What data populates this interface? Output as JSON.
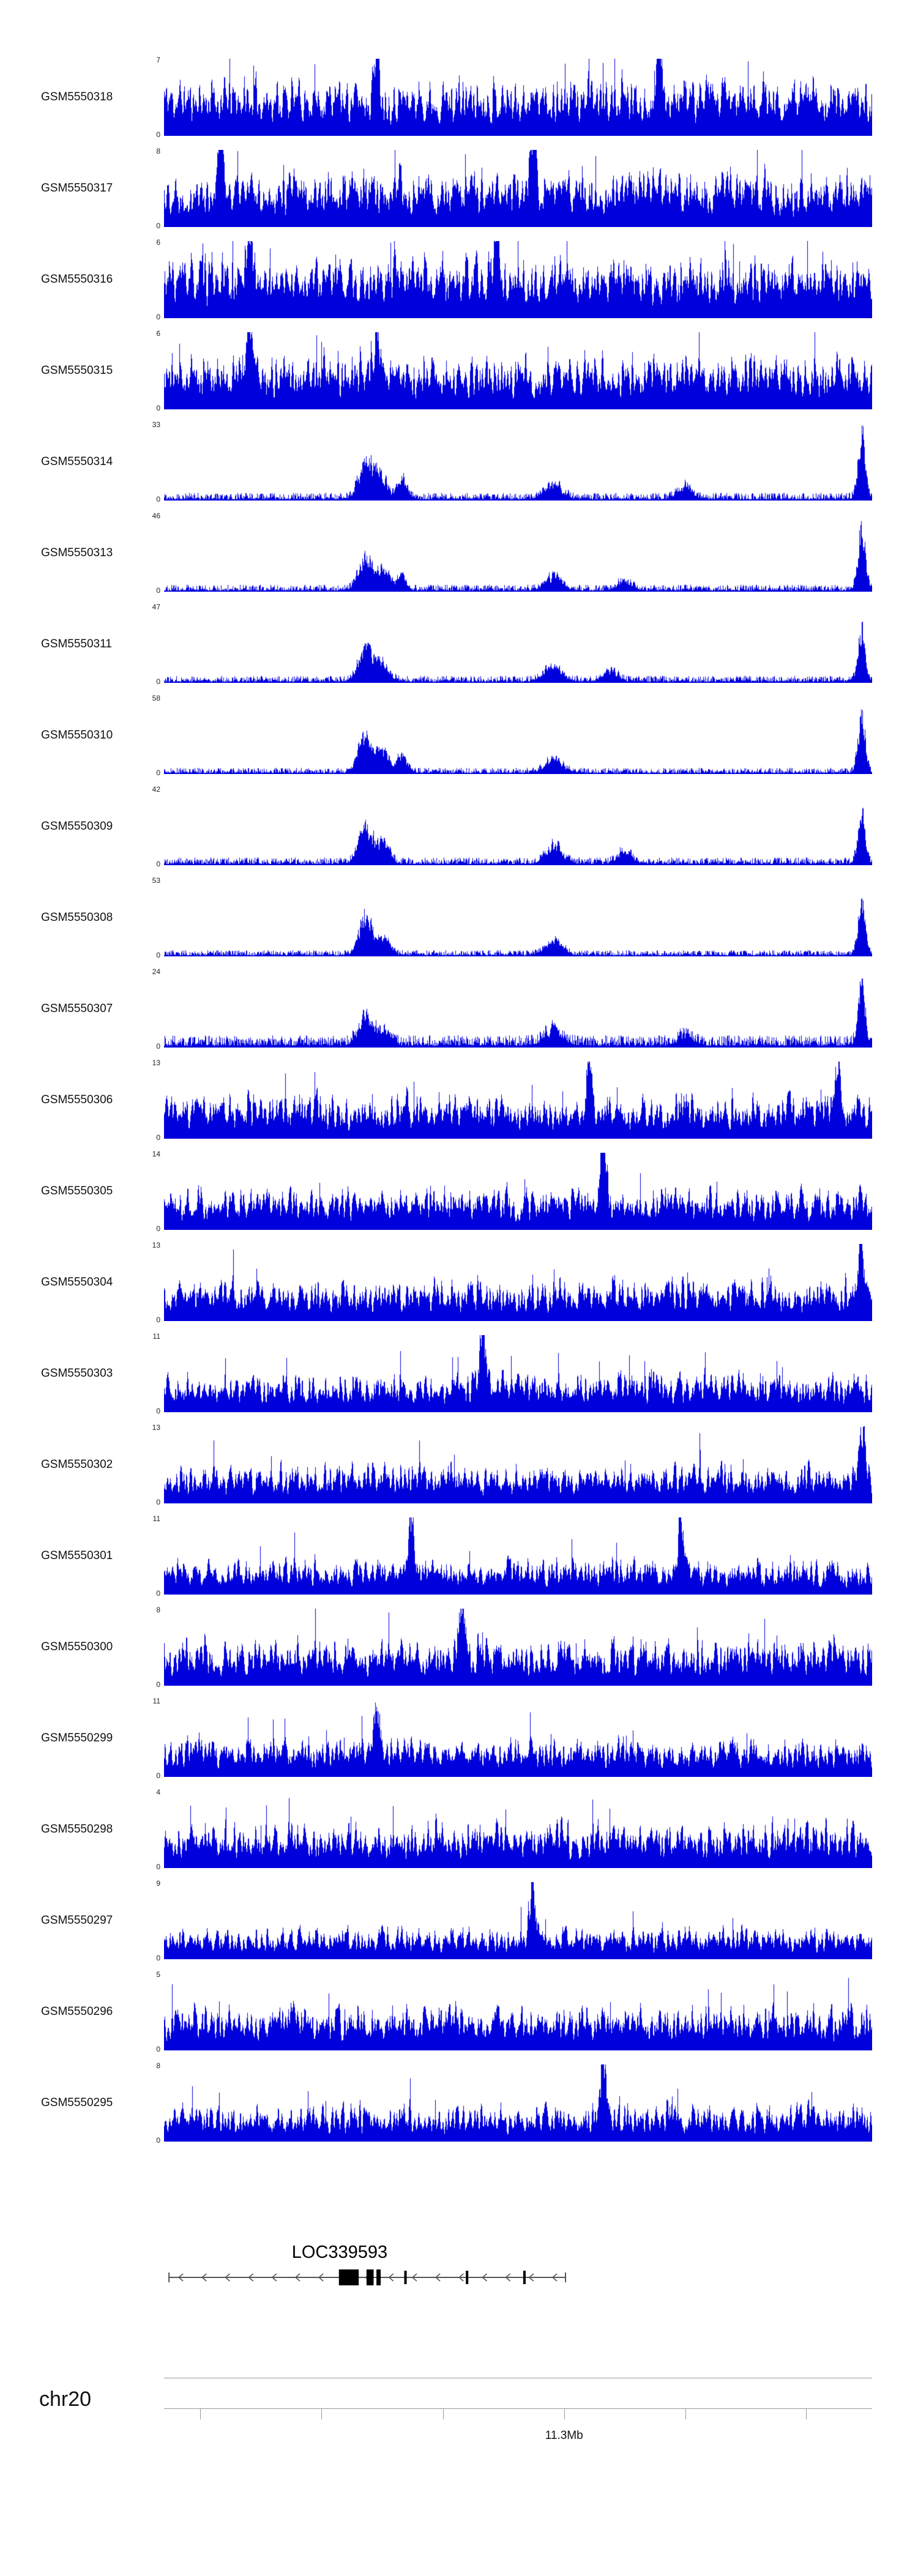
{
  "page": {
    "background": "#ffffff",
    "signal_color": "#0000dd",
    "gene_color": "#000000",
    "axis_color": "#999999"
  },
  "figure": {
    "zero_label": "0"
  },
  "chart_data": {
    "type": "area",
    "title": "",
    "description": "Genome browser coverage tracks for 23 GEO samples over a region of chr20 around 11.3Mb, with gene model LOC339593 below",
    "legend": "none",
    "grid": false,
    "x_tick_labels": [
      "11.3Mb"
    ],
    "tracks": [
      {
        "id": "GSM5550318",
        "ymin": 0,
        "ymax": 7,
        "profile": {
          "kind": "noise",
          "base": 0.92,
          "seed": 11,
          "spikes": [
            [
              0.3,
              0.95
            ],
            [
              0.7,
              0.9
            ]
          ]
        }
      },
      {
        "id": "GSM5550317",
        "ymin": 0,
        "ymax": 8,
        "profile": {
          "kind": "noise",
          "base": 0.88,
          "seed": 22,
          "spikes": [
            [
              0.08,
              0.95
            ],
            [
              0.52,
              0.9
            ]
          ]
        }
      },
      {
        "id": "GSM5550316",
        "ymin": 0,
        "ymax": 6,
        "profile": {
          "kind": "noise",
          "base": 0.95,
          "seed": 33,
          "spikes": [
            [
              0.12,
              1.0
            ],
            [
              0.47,
              0.95
            ]
          ]
        }
      },
      {
        "id": "GSM5550315",
        "ymin": 0,
        "ymax": 6,
        "profile": {
          "kind": "noise",
          "base": 0.85,
          "seed": 44,
          "spikes": [
            [
              0.12,
              1.0
            ],
            [
              0.3,
              0.9
            ]
          ]
        }
      },
      {
        "id": "GSM5550314",
        "ymin": 0,
        "ymax": 33,
        "profile": {
          "kind": "peaks",
          "base": 0.1,
          "seed": 55,
          "peaks": [
            [
              0.285,
              0.55,
              0.01
            ],
            [
              0.305,
              0.38,
              0.008
            ],
            [
              0.335,
              0.3,
              0.007
            ],
            [
              0.55,
              0.22,
              0.012
            ],
            [
              0.735,
              0.18,
              0.01
            ],
            [
              0.985,
              1.0,
              0.005
            ]
          ]
        }
      },
      {
        "id": "GSM5550313",
        "ymin": 0,
        "ymax": 46,
        "profile": {
          "kind": "peaks",
          "base": 0.09,
          "seed": 66,
          "peaks": [
            [
              0.285,
              0.52,
              0.01
            ],
            [
              0.31,
              0.3,
              0.008
            ],
            [
              0.335,
              0.22,
              0.007
            ],
            [
              0.55,
              0.2,
              0.012
            ],
            [
              0.65,
              0.14,
              0.01
            ],
            [
              0.985,
              0.97,
              0.005
            ]
          ]
        }
      },
      {
        "id": "GSM5550311",
        "ymin": 0,
        "ymax": 47,
        "profile": {
          "kind": "peaks",
          "base": 0.09,
          "seed": 77,
          "peaks": [
            [
              0.285,
              0.5,
              0.01
            ],
            [
              0.31,
              0.28,
              0.008
            ],
            [
              0.55,
              0.22,
              0.012
            ],
            [
              0.63,
              0.16,
              0.01
            ],
            [
              0.985,
              0.8,
              0.005
            ]
          ]
        }
      },
      {
        "id": "GSM5550310",
        "ymin": 0,
        "ymax": 58,
        "profile": {
          "kind": "peaks",
          "base": 0.08,
          "seed": 88,
          "peaks": [
            [
              0.285,
              0.6,
              0.01
            ],
            [
              0.31,
              0.33,
              0.008
            ],
            [
              0.335,
              0.25,
              0.007
            ],
            [
              0.55,
              0.2,
              0.012
            ],
            [
              0.985,
              0.9,
              0.005
            ]
          ]
        }
      },
      {
        "id": "GSM5550309",
        "ymin": 0,
        "ymax": 42,
        "profile": {
          "kind": "peaks",
          "base": 0.1,
          "seed": 99,
          "peaks": [
            [
              0.285,
              0.55,
              0.01
            ],
            [
              0.31,
              0.3,
              0.008
            ],
            [
              0.55,
              0.25,
              0.012
            ],
            [
              0.65,
              0.18,
              0.01
            ],
            [
              0.985,
              0.85,
              0.005
            ]
          ]
        }
      },
      {
        "id": "GSM5550308",
        "ymin": 0,
        "ymax": 53,
        "profile": {
          "kind": "peaks",
          "base": 0.08,
          "seed": 110,
          "peaks": [
            [
              0.285,
              0.65,
              0.009
            ],
            [
              0.31,
              0.28,
              0.008
            ],
            [
              0.55,
              0.2,
              0.012
            ],
            [
              0.985,
              0.8,
              0.005
            ]
          ]
        }
      },
      {
        "id": "GSM5550307",
        "ymin": 0,
        "ymax": 24,
        "profile": {
          "kind": "peaks",
          "base": 0.16,
          "seed": 121,
          "peaks": [
            [
              0.285,
              0.4,
              0.01
            ],
            [
              0.31,
              0.25,
              0.008
            ],
            [
              0.55,
              0.22,
              0.012
            ],
            [
              0.735,
              0.15,
              0.01
            ],
            [
              0.985,
              0.92,
              0.005
            ]
          ]
        }
      },
      {
        "id": "GSM5550306",
        "ymin": 0,
        "ymax": 13,
        "profile": {
          "kind": "noise",
          "base": 0.7,
          "seed": 132,
          "spikes": [
            [
              0.6,
              1.0
            ],
            [
              0.95,
              0.9
            ]
          ]
        }
      },
      {
        "id": "GSM5550305",
        "ymin": 0,
        "ymax": 14,
        "profile": {
          "kind": "noise",
          "base": 0.66,
          "seed": 143,
          "spikes": [
            [
              0.62,
              1.0
            ]
          ]
        }
      },
      {
        "id": "GSM5550304",
        "ymin": 0,
        "ymax": 13,
        "profile": {
          "kind": "noise",
          "base": 0.66,
          "seed": 154,
          "spikes": [
            [
              0.985,
              0.95
            ]
          ]
        }
      },
      {
        "id": "GSM5550303",
        "ymin": 0,
        "ymax": 11,
        "profile": {
          "kind": "noise",
          "base": 0.62,
          "seed": 165,
          "spikes": [
            [
              0.45,
              1.0
            ]
          ]
        }
      },
      {
        "id": "GSM5550302",
        "ymin": 0,
        "ymax": 13,
        "profile": {
          "kind": "noise",
          "base": 0.6,
          "seed": 176,
          "spikes": [
            [
              0.985,
              1.0
            ]
          ]
        }
      },
      {
        "id": "GSM5550301",
        "ymin": 0,
        "ymax": 11,
        "profile": {
          "kind": "noise",
          "base": 0.55,
          "seed": 187,
          "spikes": [
            [
              0.35,
              1.0
            ],
            [
              0.73,
              0.95
            ]
          ]
        }
      },
      {
        "id": "GSM5550300",
        "ymin": 0,
        "ymax": 8,
        "profile": {
          "kind": "noise",
          "base": 0.72,
          "seed": 198,
          "spikes": [
            [
              0.42,
              1.0
            ]
          ]
        }
      },
      {
        "id": "GSM5550299",
        "ymin": 0,
        "ymax": 11,
        "profile": {
          "kind": "noise",
          "base": 0.6,
          "seed": 209,
          "spikes": [
            [
              0.3,
              0.95
            ]
          ]
        }
      },
      {
        "id": "GSM5550298",
        "ymin": 0,
        "ymax": 4,
        "profile": {
          "kind": "noise",
          "base": 0.72,
          "seed": 220,
          "spikes": []
        }
      },
      {
        "id": "GSM5550297",
        "ymin": 0,
        "ymax": 9,
        "profile": {
          "kind": "noise",
          "base": 0.5,
          "seed": 231,
          "spikes": [
            [
              0.52,
              1.0
            ]
          ]
        }
      },
      {
        "id": "GSM5550296",
        "ymin": 0,
        "ymax": 5,
        "profile": {
          "kind": "noise",
          "base": 0.7,
          "seed": 242,
          "spikes": []
        }
      },
      {
        "id": "GSM5550295",
        "ymin": 0,
        "ymax": 8,
        "profile": {
          "kind": "noise",
          "base": 0.58,
          "seed": 253,
          "spikes": [
            [
              0.62,
              1.0
            ]
          ]
        }
      }
    ],
    "gene_track": {
      "label": "LOC339593",
      "strand": "minus",
      "line": [
        0.007,
        0.567
      ],
      "label_pos": 0.248,
      "exons_wide": [
        [
          0.247,
          0.028
        ],
        [
          0.286,
          0.01
        ],
        [
          0.3,
          0.006
        ]
      ],
      "exons_thin": [
        0.341,
        0.428,
        0.509
      ],
      "arrow_spacing": 0.033
    },
    "ruler": {
      "chrom": "chr20",
      "label": "11.3Mb",
      "ticks": [
        0.051,
        0.222,
        0.394,
        0.565,
        0.736,
        0.907
      ],
      "label_tick": 3
    }
  }
}
